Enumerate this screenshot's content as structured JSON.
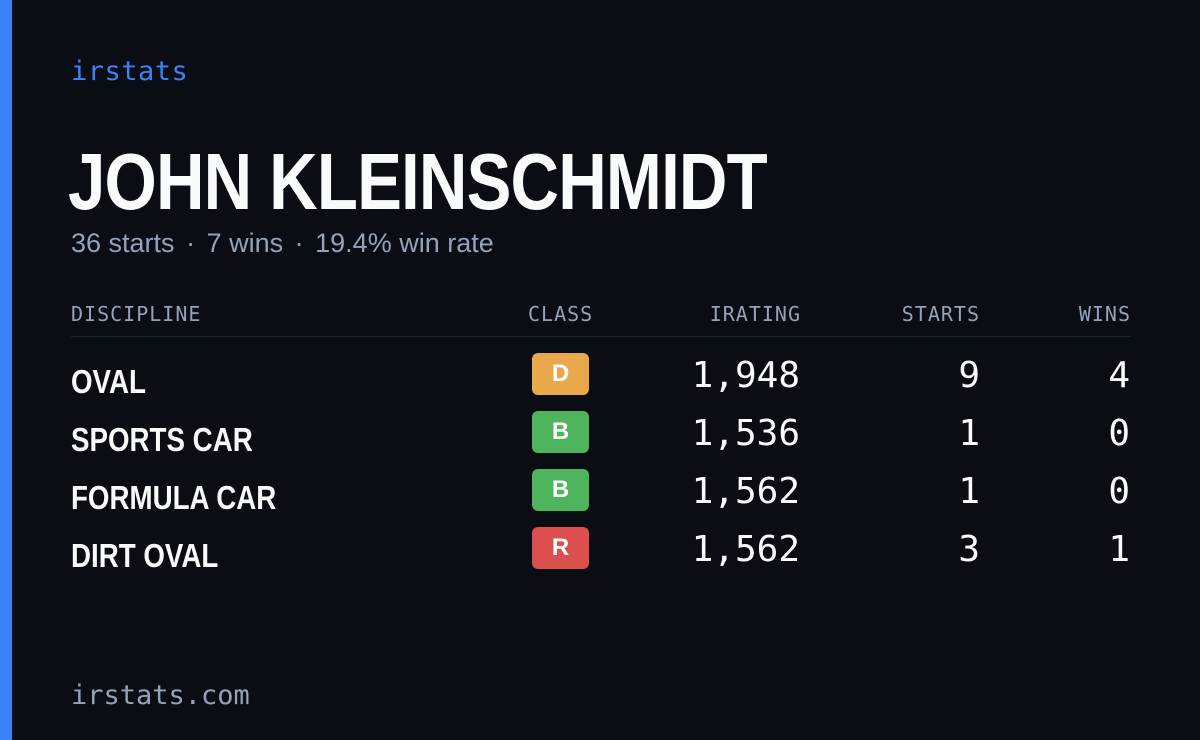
{
  "brand": "irstats",
  "driver": {
    "name": "JOHN KLEINSCHMIDT"
  },
  "summary": {
    "starts": "36 starts",
    "wins": "7 wins",
    "win_rate": "19.4% win rate",
    "separator": "·"
  },
  "table": {
    "headers": {
      "discipline": "DISCIPLINE",
      "class": "CLASS",
      "irating": "IRATING",
      "starts": "STARTS",
      "wins": "WINS"
    },
    "rows": [
      {
        "discipline": "OVAL",
        "class": "D",
        "class_color": "#e9a84b",
        "irating": "1,948",
        "starts": "9",
        "wins": "4"
      },
      {
        "discipline": "SPORTS CAR",
        "class": "B",
        "class_color": "#4fb55c",
        "irating": "1,536",
        "starts": "1",
        "wins": "0"
      },
      {
        "discipline": "FORMULA CAR",
        "class": "B",
        "class_color": "#4fb55c",
        "irating": "1,562",
        "starts": "1",
        "wins": "0"
      },
      {
        "discipline": "DIRT OVAL",
        "class": "R",
        "class_color": "#dd4e4e",
        "irating": "1,562",
        "starts": "3",
        "wins": "1"
      }
    ]
  },
  "footer": {
    "url": "irstats.com"
  },
  "colors": {
    "accent": "#3b82f6",
    "background": "#0a0d14",
    "muted": "#94a3b8",
    "text": "#f8fafc"
  }
}
